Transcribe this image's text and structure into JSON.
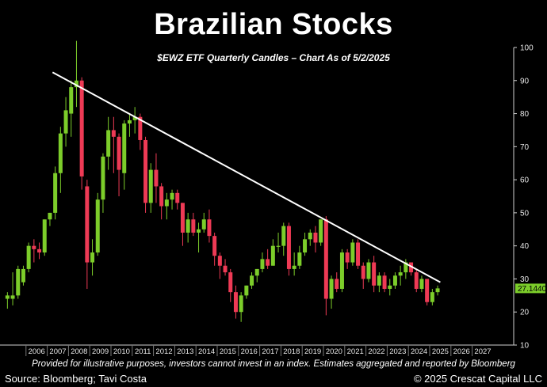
{
  "title": "Brazilian Stocks",
  "subtitle": "$EWZ ETF Quarterly Candles – Chart As of 5/2/2025",
  "footnote": "Provided for illustrative purposes, investors cannot invest in an index. Estimates aggregated and reported by Bloomberg",
  "source": "Source: Bloomberg; Tavi Costa",
  "copyright": "© 2025 Crescat Capital LLC",
  "colors": {
    "up": "#7ccd2a",
    "down": "#ee3a55",
    "trendline": "#ffffff",
    "background": "#000000",
    "last_price_bg": "#7ccd2a"
  },
  "chart_data": {
    "type": "candlestick",
    "ylim": [
      10,
      100
    ],
    "y_ticks": [
      10,
      20,
      30,
      40,
      50,
      60,
      70,
      80,
      90,
      100
    ],
    "x_ticks": [
      "2006",
      "2007",
      "2008",
      "2009",
      "2010",
      "2011",
      "2012",
      "2013",
      "2014",
      "2015",
      "2016",
      "2017",
      "2018",
      "2019",
      "2020",
      "2021",
      "2022",
      "2023",
      "2024",
      "2025",
      "2026",
      "2027"
    ],
    "last_price": "27.1440",
    "trendline": {
      "start": {
        "t": 2007.25,
        "value": 92.5
      },
      "end": {
        "t": 2025.5,
        "value": 29
      }
    },
    "candles": [
      {
        "t": 2005.125,
        "o": 24,
        "h": 26,
        "l": 21,
        "c": 25
      },
      {
        "t": 2005.375,
        "o": 24,
        "h": 32,
        "l": 22,
        "c": 25
      },
      {
        "t": 2005.625,
        "o": 25,
        "h": 34,
        "l": 24,
        "c": 33
      },
      {
        "t": 2005.875,
        "o": 29,
        "h": 34,
        "l": 28,
        "c": 33
      },
      {
        "t": 2006.125,
        "o": 33,
        "h": 41,
        "l": 32,
        "c": 40
      },
      {
        "t": 2006.375,
        "o": 40,
        "h": 42,
        "l": 35,
        "c": 39
      },
      {
        "t": 2006.625,
        "o": 39,
        "h": 41,
        "l": 36,
        "c": 38
      },
      {
        "t": 2006.875,
        "o": 38,
        "h": 48,
        "l": 37,
        "c": 48
      },
      {
        "t": 2007.125,
        "o": 48,
        "h": 50,
        "l": 46,
        "c": 50
      },
      {
        "t": 2007.375,
        "o": 50,
        "h": 64,
        "l": 48,
        "c": 62
      },
      {
        "t": 2007.625,
        "o": 62,
        "h": 76,
        "l": 56,
        "c": 74
      },
      {
        "t": 2007.875,
        "o": 74,
        "h": 85,
        "l": 70,
        "c": 81
      },
      {
        "t": 2008.125,
        "o": 80,
        "h": 90,
        "l": 73,
        "c": 88
      },
      {
        "t": 2008.375,
        "o": 88,
        "h": 102,
        "l": 82,
        "c": 90
      },
      {
        "t": 2008.625,
        "o": 90,
        "h": 91,
        "l": 57,
        "c": 61
      },
      {
        "t": 2008.875,
        "o": 58,
        "h": 60,
        "l": 27,
        "c": 35
      },
      {
        "t": 2009.125,
        "o": 35,
        "h": 42,
        "l": 31,
        "c": 38
      },
      {
        "t": 2009.375,
        "o": 38,
        "h": 56,
        "l": 37,
        "c": 54
      },
      {
        "t": 2009.625,
        "o": 54,
        "h": 68,
        "l": 50,
        "c": 67
      },
      {
        "t": 2009.875,
        "o": 67,
        "h": 79,
        "l": 63,
        "c": 75
      },
      {
        "t": 2010.125,
        "o": 75,
        "h": 79,
        "l": 62,
        "c": 73
      },
      {
        "t": 2010.375,
        "o": 73,
        "h": 74,
        "l": 55,
        "c": 63
      },
      {
        "t": 2010.625,
        "o": 62,
        "h": 78,
        "l": 57,
        "c": 77
      },
      {
        "t": 2010.875,
        "o": 77,
        "h": 80,
        "l": 73,
        "c": 78
      },
      {
        "t": 2011.125,
        "o": 78,
        "h": 82,
        "l": 74,
        "c": 79
      },
      {
        "t": 2011.375,
        "o": 79,
        "h": 80,
        "l": 69,
        "c": 72
      },
      {
        "t": 2011.625,
        "o": 72,
        "h": 73,
        "l": 50,
        "c": 53
      },
      {
        "t": 2011.875,
        "o": 53,
        "h": 65,
        "l": 50,
        "c": 63
      },
      {
        "t": 2012.125,
        "o": 63,
        "h": 68,
        "l": 53,
        "c": 58
      },
      {
        "t": 2012.375,
        "o": 58,
        "h": 59,
        "l": 48,
        "c": 52
      },
      {
        "t": 2012.625,
        "o": 52,
        "h": 56,
        "l": 48,
        "c": 54
      },
      {
        "t": 2012.875,
        "o": 54,
        "h": 57,
        "l": 51,
        "c": 56
      },
      {
        "t": 2013.125,
        "o": 56,
        "h": 57,
        "l": 51,
        "c": 53
      },
      {
        "t": 2013.375,
        "o": 53,
        "h": 53,
        "l": 40,
        "c": 44
      },
      {
        "t": 2013.625,
        "o": 44,
        "h": 50,
        "l": 41,
        "c": 48
      },
      {
        "t": 2013.875,
        "o": 48,
        "h": 50,
        "l": 43,
        "c": 44
      },
      {
        "t": 2014.125,
        "o": 44,
        "h": 47,
        "l": 38,
        "c": 45
      },
      {
        "t": 2014.375,
        "o": 45,
        "h": 50,
        "l": 44,
        "c": 48
      },
      {
        "t": 2014.625,
        "o": 48,
        "h": 51,
        "l": 41,
        "c": 43
      },
      {
        "t": 2014.875,
        "o": 43,
        "h": 44,
        "l": 34,
        "c": 37
      },
      {
        "t": 2015.125,
        "o": 37,
        "h": 38,
        "l": 30,
        "c": 34
      },
      {
        "t": 2015.375,
        "o": 34,
        "h": 36,
        "l": 31,
        "c": 32
      },
      {
        "t": 2015.625,
        "o": 32,
        "h": 33,
        "l": 23,
        "c": 26
      },
      {
        "t": 2015.875,
        "o": 26,
        "h": 28,
        "l": 18,
        "c": 20
      },
      {
        "t": 2016.125,
        "o": 20,
        "h": 26,
        "l": 17,
        "c": 25
      },
      {
        "t": 2016.375,
        "o": 25,
        "h": 28,
        "l": 24,
        "c": 28
      },
      {
        "t": 2016.625,
        "o": 28,
        "h": 32,
        "l": 27,
        "c": 31
      },
      {
        "t": 2016.875,
        "o": 31,
        "h": 33,
        "l": 29,
        "c": 33
      },
      {
        "t": 2017.125,
        "o": 33,
        "h": 38,
        "l": 32,
        "c": 36
      },
      {
        "t": 2017.375,
        "o": 36,
        "h": 39,
        "l": 33,
        "c": 34
      },
      {
        "t": 2017.625,
        "o": 34,
        "h": 42,
        "l": 34,
        "c": 40
      },
      {
        "t": 2017.875,
        "o": 40,
        "h": 44,
        "l": 38,
        "c": 40
      },
      {
        "t": 2018.125,
        "o": 40,
        "h": 47,
        "l": 37,
        "c": 46
      },
      {
        "t": 2018.375,
        "o": 46,
        "h": 47,
        "l": 31,
        "c": 33
      },
      {
        "t": 2018.625,
        "o": 33,
        "h": 38,
        "l": 31,
        "c": 34
      },
      {
        "t": 2018.875,
        "o": 34,
        "h": 40,
        "l": 33,
        "c": 38
      },
      {
        "t": 2019.125,
        "o": 38,
        "h": 44,
        "l": 37,
        "c": 42
      },
      {
        "t": 2019.375,
        "o": 42,
        "h": 45,
        "l": 40,
        "c": 44
      },
      {
        "t": 2019.625,
        "o": 44,
        "h": 46,
        "l": 38,
        "c": 41
      },
      {
        "t": 2019.875,
        "o": 41,
        "h": 48,
        "l": 40,
        "c": 48
      },
      {
        "t": 2020.125,
        "o": 48,
        "h": 49,
        "l": 19,
        "c": 24
      },
      {
        "t": 2020.375,
        "o": 24,
        "h": 31,
        "l": 21,
        "c": 30
      },
      {
        "t": 2020.625,
        "o": 30,
        "h": 32,
        "l": 26,
        "c": 27
      },
      {
        "t": 2020.875,
        "o": 27,
        "h": 39,
        "l": 26,
        "c": 38
      },
      {
        "t": 2021.125,
        "o": 38,
        "h": 39,
        "l": 33,
        "c": 35
      },
      {
        "t": 2021.375,
        "o": 35,
        "h": 42,
        "l": 34,
        "c": 41
      },
      {
        "t": 2021.625,
        "o": 41,
        "h": 42,
        "l": 33,
        "c": 34
      },
      {
        "t": 2021.875,
        "o": 34,
        "h": 35,
        "l": 27,
        "c": 30
      },
      {
        "t": 2022.125,
        "o": 30,
        "h": 36,
        "l": 29,
        "c": 35
      },
      {
        "t": 2022.375,
        "o": 35,
        "h": 37,
        "l": 26,
        "c": 28
      },
      {
        "t": 2022.625,
        "o": 28,
        "h": 32,
        "l": 26,
        "c": 31
      },
      {
        "t": 2022.875,
        "o": 31,
        "h": 32,
        "l": 26,
        "c": 27
      },
      {
        "t": 2023.125,
        "o": 27,
        "h": 30,
        "l": 25,
        "c": 28
      },
      {
        "t": 2023.375,
        "o": 28,
        "h": 32,
        "l": 27,
        "c": 31
      },
      {
        "t": 2023.625,
        "o": 31,
        "h": 34,
        "l": 28,
        "c": 32
      },
      {
        "t": 2023.875,
        "o": 32,
        "h": 36,
        "l": 30,
        "c": 35
      },
      {
        "t": 2024.125,
        "o": 35,
        "h": 35,
        "l": 31,
        "c": 32
      },
      {
        "t": 2024.375,
        "o": 32,
        "h": 33,
        "l": 26,
        "c": 27
      },
      {
        "t": 2024.625,
        "o": 27,
        "h": 31,
        "l": 26,
        "c": 30
      },
      {
        "t": 2024.875,
        "o": 30,
        "h": 30,
        "l": 22,
        "c": 23
      },
      {
        "t": 2025.125,
        "o": 23,
        "h": 27,
        "l": 22,
        "c": 26
      },
      {
        "t": 2025.375,
        "o": 26,
        "h": 28,
        "l": 25,
        "c": 27.144
      }
    ]
  }
}
